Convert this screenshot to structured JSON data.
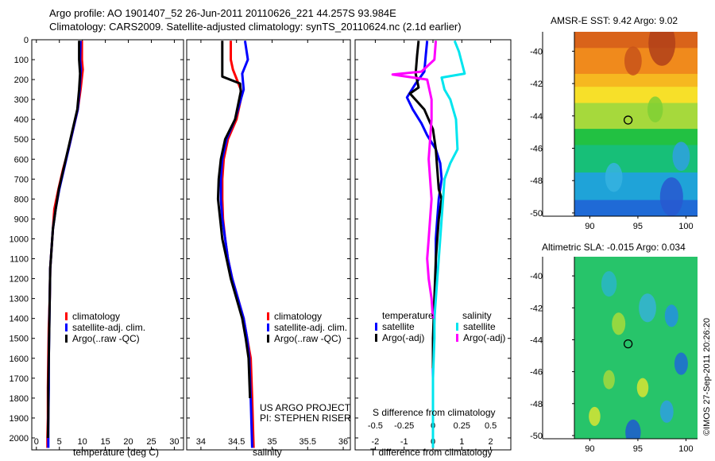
{
  "header": {
    "line1": "Argo profile: AO 1901407_52 26-Jun-2011 20110626_221 44.257S 93.984E",
    "line2": "Climatology: CARS2009. Satellite-adjusted climatology: synTS_20110624.nc (2.1d earlier)"
  },
  "colors": {
    "climatology": "#ff0000",
    "satellite": "#0000ff",
    "argo": "#000000",
    "sal_satellite": "#00e5ee",
    "sal_argo": "#ff00ff"
  },
  "depth_axis": {
    "range": [
      0,
      2060
    ],
    "ticks": [
      0,
      100,
      200,
      300,
      400,
      500,
      600,
      700,
      800,
      900,
      1000,
      1100,
      1200,
      1300,
      1400,
      1500,
      1600,
      1700,
      1800,
      1900,
      2000
    ]
  },
  "chart_data": [
    {
      "type": "line",
      "id": "temperature",
      "xlabel": "temperature (deg C)",
      "xlim": [
        -1,
        32
      ],
      "xticks": [
        0,
        5,
        10,
        15,
        20,
        25,
        30
      ],
      "ylim": [
        0,
        2060
      ],
      "y_reversed": true,
      "legend": [
        "climatology",
        "satellite-adj. clim.",
        "Argo(..raw -QC)"
      ],
      "series": [
        {
          "name": "climatology",
          "color": "#ff0000",
          "x": [
            9.9,
            9.9,
            10.1,
            9.6,
            9.0,
            8.0,
            7.0,
            5.8,
            4.8,
            3.9,
            3.6,
            3.3,
            3.0,
            2.9,
            2.7,
            2.6,
            2.5,
            2.5,
            2.4,
            2.4
          ],
          "y": [
            5,
            100,
            150,
            250,
            350,
            450,
            550,
            650,
            750,
            850,
            950,
            1050,
            1150,
            1300,
            1450,
            1600,
            1750,
            1900,
            2000,
            2050
          ]
        },
        {
          "name": "satellite-adj. clim.",
          "color": "#0000ff",
          "x": [
            9.6,
            9.5,
            9.7,
            9.4,
            9.0,
            8.0,
            7.0,
            6.0,
            5.0,
            4.2,
            3.6,
            3.3,
            3.0,
            2.9,
            2.8,
            2.7,
            2.7,
            2.6,
            2.6,
            2.6
          ],
          "y": [
            5,
            100,
            150,
            250,
            350,
            450,
            550,
            650,
            750,
            850,
            950,
            1050,
            1150,
            1300,
            1450,
            1600,
            1750,
            1900,
            2000,
            2050
          ]
        },
        {
          "name": "Argo(..raw -QC)",
          "color": "#000000",
          "x": [
            9.3,
            9.3,
            9.5,
            9.3,
            8.9,
            7.9,
            6.9,
            5.9,
            4.9,
            4.2,
            3.6,
            3.3,
            3.0,
            2.9,
            2.8,
            2.7,
            2.6,
            2.6,
            2.5
          ],
          "y": [
            5,
            100,
            170,
            250,
            350,
            450,
            550,
            650,
            750,
            850,
            950,
            1050,
            1150,
            1300,
            1450,
            1600,
            1750,
            1900,
            2000
          ]
        }
      ]
    },
    {
      "type": "line",
      "id": "salinity",
      "xlabel": "salinity",
      "xlim": [
        33.8,
        36.1
      ],
      "xticks": [
        34,
        34.5,
        35,
        35.5,
        36
      ],
      "ylim": [
        0,
        2060
      ],
      "y_reversed": true,
      "legend": [
        "climatology",
        "satellite-adj. clim.",
        "Argo(..raw -QC)"
      ],
      "annotation": [
        "US ARGO PROJECT",
        "PI: STEPHEN RISER"
      ],
      "series": [
        {
          "name": "climatology",
          "color": "#ff0000",
          "x": [
            34.42,
            34.42,
            34.45,
            34.56,
            34.56,
            34.5,
            34.38,
            34.32,
            34.3,
            34.3,
            34.31,
            34.34,
            34.38,
            34.44,
            34.52,
            34.6,
            34.65,
            34.7,
            34.72,
            34.74
          ],
          "y": [
            5,
            100,
            150,
            250,
            300,
            400,
            500,
            600,
            700,
            800,
            900,
            1000,
            1100,
            1200,
            1300,
            1400,
            1500,
            1600,
            1800,
            2050
          ]
        },
        {
          "name": "satellite-adj. clim.",
          "color": "#0000ff",
          "x": [
            34.62,
            34.66,
            34.58,
            34.6,
            34.56,
            34.48,
            34.36,
            34.3,
            34.28,
            34.28,
            34.3,
            34.34,
            34.38,
            34.44,
            34.52,
            34.6,
            34.65,
            34.68,
            34.7,
            34.72
          ],
          "y": [
            5,
            100,
            170,
            250,
            300,
            400,
            500,
            600,
            700,
            800,
            900,
            1000,
            1100,
            1200,
            1300,
            1400,
            1500,
            1600,
            1800,
            2050
          ]
        },
        {
          "name": "Argo(..raw -QC)",
          "color": "#000000",
          "x": [
            34.3,
            34.3,
            34.3,
            34.55,
            34.56,
            34.48,
            34.34,
            34.28,
            34.25,
            34.24,
            34.27,
            34.3,
            34.36,
            34.42,
            34.5,
            34.58,
            34.63,
            34.67,
            34.69
          ],
          "y": [
            5,
            90,
            185,
            220,
            260,
            400,
            500,
            600,
            700,
            800,
            900,
            1000,
            1100,
            1200,
            1300,
            1400,
            1500,
            1600,
            1800
          ]
        }
      ]
    },
    {
      "type": "line",
      "id": "difference",
      "xlabel": "T difference from climatology",
      "xlim": [
        -2.7,
        2.7
      ],
      "xticks": [
        -2,
        -1,
        0,
        1,
        2
      ],
      "secondary_xlabel": "S difference from climatology",
      "secondary_xlim": [
        -0.675,
        0.675
      ],
      "secondary_xticks": [
        -0.5,
        -0.25,
        0,
        0.25,
        0.5
      ],
      "ylim": [
        0,
        2060
      ],
      "y_reversed": true,
      "legend_headers": [
        "temperature",
        "salinity"
      ],
      "legend": [
        "satellite",
        "Argo(-adj)",
        "satellite",
        "Argo(-adj)"
      ],
      "series": [
        {
          "name": "temperature satellite",
          "color": "#0000ff",
          "x": [
            -0.2,
            -0.25,
            -0.3,
            -0.6,
            -0.9,
            -0.7,
            -0.4,
            -0.2,
            0.1,
            0.25,
            0.3,
            0.2,
            0.15,
            0.1,
            0.1,
            0.05,
            0.0,
            0.0,
            0.0,
            0.0,
            0.0
          ],
          "y": [
            5,
            80,
            160,
            220,
            290,
            350,
            420,
            480,
            550,
            620,
            700,
            800,
            900,
            1000,
            1200,
            1400,
            1600,
            1800,
            1900,
            2000,
            2050
          ]
        },
        {
          "name": "temperature Argo(-adj)",
          "color": "#000000",
          "x": [
            -0.5,
            -0.55,
            -0.6,
            -0.5,
            -0.8,
            -0.3,
            0.0,
            0.1,
            0.15,
            0.2,
            0.3,
            0.2,
            0.15,
            0.1,
            0.05,
            0.0,
            0.0
          ],
          "y": [
            5,
            80,
            170,
            240,
            270,
            350,
            450,
            550,
            650,
            750,
            800,
            900,
            1000,
            1100,
            1300,
            1500,
            1650
          ]
        },
        {
          "name": "salinity satellite",
          "color": "#00e5ee",
          "x": [
            0.75,
            0.9,
            1.1,
            0.3,
            0.4,
            0.6,
            0.8,
            0.85,
            0.6,
            0.4,
            0.35,
            0.3,
            0.25,
            0.2,
            0.15,
            0.1,
            0.05,
            0.05,
            0.0,
            0.0,
            0.0
          ],
          "y": [
            5,
            60,
            170,
            190,
            250,
            300,
            400,
            550,
            620,
            700,
            800,
            900,
            1000,
            1100,
            1200,
            1300,
            1400,
            1500,
            1700,
            1900,
            2050
          ]
        },
        {
          "name": "salinity Argo(-adj)",
          "color": "#ff00ff",
          "x": [
            0.1,
            0.05,
            -0.4,
            -1.4,
            -0.2,
            -0.05,
            -0.05,
            -0.1,
            -0.15,
            -0.1,
            -0.05,
            -0.1,
            -0.15,
            -0.2,
            -0.15,
            -0.05,
            0.0
          ],
          "y": [
            5,
            100,
            160,
            175,
            200,
            300,
            400,
            500,
            600,
            700,
            800,
            900,
            1000,
            1100,
            1200,
            1300,
            1400
          ]
        }
      ]
    },
    {
      "type": "heatmap",
      "id": "sst_map",
      "title": "AMSR-E SST: 9.42 Argo: 9.02",
      "xlim": [
        88.4,
        101.2
      ],
      "ylim": [
        -50.2,
        -38.8
      ],
      "xticks": [
        90,
        95,
        100
      ],
      "yticks": [
        -40,
        -42,
        -44,
        -46,
        -48,
        -50
      ],
      "marker": {
        "lon": 93.984,
        "lat": -44.257
      },
      "bands": [
        {
          "lat": [
            -38.8,
            -39.8
          ],
          "color": "#d9631a"
        },
        {
          "lat": [
            -39.8,
            -41.4
          ],
          "color": "#f08a1c"
        },
        {
          "lat": [
            -41.4,
            -42.2
          ],
          "color": "#f6b820"
        },
        {
          "lat": [
            -42.2,
            -43.2
          ],
          "color": "#f7e029"
        },
        {
          "lat": [
            -43.2,
            -44.8
          ],
          "color": "#a6d93c"
        },
        {
          "lat": [
            -44.8,
            -45.8
          ],
          "color": "#22c142"
        },
        {
          "lat": [
            -45.8,
            -47.5
          ],
          "color": "#17bf78"
        },
        {
          "lat": [
            -47.5,
            -49.2
          ],
          "color": "#1fa3d8"
        },
        {
          "lat": [
            -49.2,
            -50.2
          ],
          "color": "#1f6ad6"
        }
      ],
      "blobs": [
        {
          "lon": 97.5,
          "lat": -39.5,
          "r": 1.4,
          "color": "#b0401a"
        },
        {
          "lon": 94.5,
          "lat": -40.6,
          "r": 0.9,
          "color": "#c8521a"
        },
        {
          "lon": 96.8,
          "lat": -43.6,
          "r": 0.8,
          "color": "#7fcf34"
        },
        {
          "lon": 92.5,
          "lat": -47.8,
          "r": 0.9,
          "color": "#36b3e0"
        },
        {
          "lon": 98.5,
          "lat": -49.0,
          "r": 1.2,
          "color": "#2858d0"
        },
        {
          "lon": 99.5,
          "lat": -46.5,
          "r": 0.9,
          "color": "#2fa0e0"
        }
      ]
    },
    {
      "type": "heatmap",
      "id": "sla_map",
      "title": "Altimetric SLA: -0.015 Argo: 0.034",
      "xlim": [
        88.4,
        101.2
      ],
      "ylim": [
        -50.2,
        -38.8
      ],
      "xticks": [
        90,
        95,
        100
      ],
      "yticks": [
        -40,
        -42,
        -44,
        -46,
        -48,
        -50
      ],
      "marker": {
        "lon": 93.984,
        "lat": -44.257
      },
      "base_color": "#27c46a",
      "blobs": [
        {
          "lon": 92.0,
          "lat": -40.5,
          "r": 0.8,
          "color": "#2ab6c8"
        },
        {
          "lon": 96.0,
          "lat": -42.0,
          "r": 0.9,
          "color": "#36b3d6"
        },
        {
          "lon": 98.5,
          "lat": -42.5,
          "r": 0.7,
          "color": "#2490e0"
        },
        {
          "lon": 99.5,
          "lat": -45.5,
          "r": 0.7,
          "color": "#1f6ad6"
        },
        {
          "lon": 92.0,
          "lat": -46.5,
          "r": 0.6,
          "color": "#a6d93c"
        },
        {
          "lon": 95.5,
          "lat": -47.0,
          "r": 0.6,
          "color": "#d8e532"
        },
        {
          "lon": 90.5,
          "lat": -48.8,
          "r": 0.6,
          "color": "#d8e532"
        },
        {
          "lon": 94.5,
          "lat": -49.8,
          "r": 0.8,
          "color": "#1f5ad0"
        },
        {
          "lon": 98.0,
          "lat": -48.5,
          "r": 0.7,
          "color": "#2fa0e0"
        },
        {
          "lon": 93.0,
          "lat": -43.0,
          "r": 0.7,
          "color": "#a8dc3a"
        }
      ]
    }
  ],
  "watermark": "©IMOS 27-Sep-2011 20:26:20"
}
